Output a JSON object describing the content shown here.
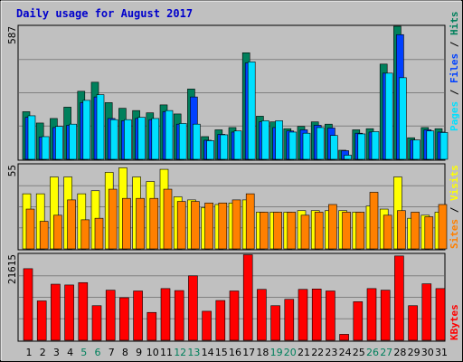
{
  "title": "Daily usage for August 2017",
  "colors": {
    "background": "#c0c0c0",
    "title": "#0000cc",
    "hits": "#00805c",
    "files": "#0040ff",
    "pages": "#00e0ff",
    "visits": "#ffff00",
    "sites": "#ff8000",
    "kbytes": "#ff0000",
    "weekend_label": "#00805c",
    "weekday_label": "#000000",
    "grid": "#808080"
  },
  "panels": {
    "top": {
      "max_label": "587",
      "legend": [
        {
          "key": "hits",
          "label": "Hits"
        },
        {
          "key": "files",
          "label": "Files"
        },
        {
          "key": "pages",
          "label": "Pages"
        }
      ]
    },
    "middle": {
      "max_label": "55",
      "legend": [
        {
          "key": "visits",
          "label": "Visits"
        },
        {
          "key": "sites",
          "label": "Sites"
        }
      ]
    },
    "bottom": {
      "max_label": "21615",
      "legend": [
        {
          "key": "kbytes",
          "label": "KBytes"
        }
      ]
    }
  },
  "chart_data": {
    "type": "bar",
    "title": "Daily usage for August 2017",
    "categories": [
      "1",
      "2",
      "3",
      "4",
      "5",
      "6",
      "7",
      "8",
      "9",
      "10",
      "11",
      "12",
      "13",
      "14",
      "15",
      "16",
      "17",
      "18",
      "19",
      "20",
      "21",
      "22",
      "23",
      "24",
      "25",
      "26",
      "27",
      "28",
      "29",
      "30",
      "31"
    ],
    "weekend_days": [
      "5",
      "6",
      "12",
      "13",
      "19",
      "20",
      "26",
      "27"
    ],
    "series": [
      {
        "name": "Hits",
        "panel": "top",
        "ylim": [
          0,
          587
        ],
        "values": [
          210,
          160,
          180,
          230,
          300,
          340,
          250,
          225,
          215,
          205,
          240,
          200,
          310,
          100,
          130,
          140,
          470,
          190,
          165,
          135,
          145,
          165,
          155,
          40,
          130,
          135,
          420,
          587,
          95,
          140,
          135
        ]
      },
      {
        "name": "Files",
        "panel": "top",
        "ylim": [
          0,
          587
        ],
        "values": [
          185,
          98,
          140,
          150,
          250,
          275,
          180,
          170,
          180,
          175,
          210,
          155,
          275,
          84,
          110,
          120,
          425,
          165,
          140,
          125,
          130,
          150,
          138,
          38,
          115,
          120,
          380,
          550,
          85,
          130,
          120
        ]
      },
      {
        "name": "Pages",
        "panel": "top",
        "ylim": [
          0,
          587
        ],
        "values": [
          192,
          100,
          145,
          155,
          260,
          285,
          175,
          175,
          185,
          180,
          215,
          158,
          155,
          82,
          108,
          125,
          430,
          170,
          170,
          120,
          115,
          140,
          105,
          18,
          112,
          122,
          380,
          360,
          85,
          125,
          118
        ]
      },
      {
        "name": "Visits",
        "panel": "middle",
        "ylim": [
          0,
          55
        ],
        "values": [
          36,
          36,
          47,
          47,
          36,
          38,
          50,
          53,
          47,
          44,
          52,
          34,
          32,
          27,
          29,
          30,
          32,
          24,
          24,
          24,
          25,
          25,
          25,
          25,
          24,
          28,
          26,
          47,
          20,
          22,
          24
        ]
      },
      {
        "name": "Sites",
        "panel": "middle",
        "ylim": [
          0,
          55
        ],
        "values": [
          26,
          18,
          22,
          32,
          19,
          20,
          39,
          33,
          33,
          33,
          39,
          31,
          31,
          30,
          30,
          32,
          36,
          24,
          24,
          24,
          22,
          24,
          29,
          24,
          24,
          37,
          22,
          25,
          24,
          21,
          29
        ]
      },
      {
        "name": "KBytes",
        "panel": "bottom",
        "ylim": [
          0,
          21615
        ],
        "values": [
          18000,
          9900,
          14100,
          13900,
          14500,
          8700,
          12600,
          10700,
          12400,
          7000,
          13000,
          12500,
          16200,
          7300,
          10000,
          12400,
          21500,
          12800,
          8700,
          10300,
          12800,
          12900,
          12400,
          1500,
          9700,
          13000,
          12600,
          21200,
          8700,
          14200,
          13000
        ]
      }
    ]
  }
}
